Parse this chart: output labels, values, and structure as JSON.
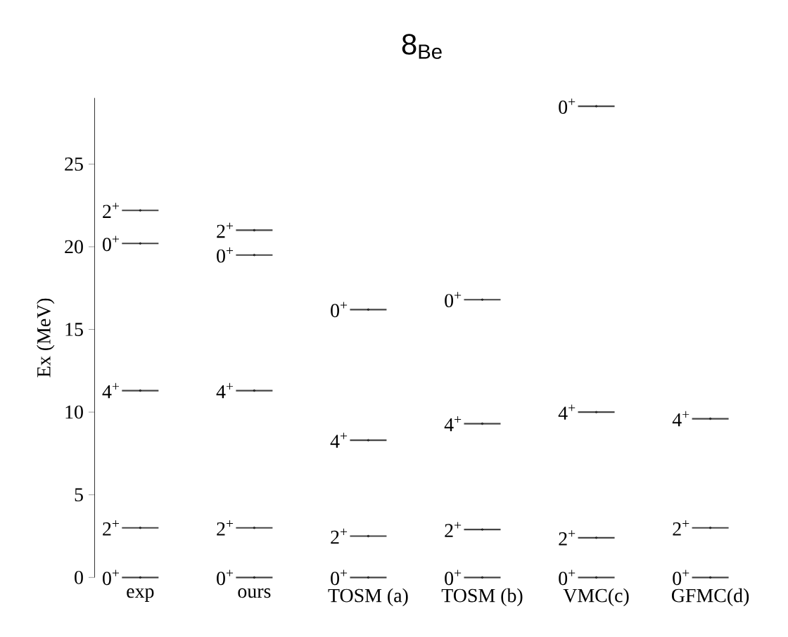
{
  "chart_data": {
    "type": "scatter",
    "title": "8$_{Be}$",
    "ylabel": "Ex  (MeV)",
    "categories": [
      "exp",
      "ours",
      "TOSM (a)",
      "TOSM (b)",
      "VMC(c)",
      "GFMC(d)"
    ],
    "ylim": [
      0,
      29
    ],
    "yticks": [
      0,
      5,
      10,
      15,
      20,
      25
    ],
    "grid": false,
    "series": [
      {
        "color": "#444444",
        "values": [
          0,
          0,
          0,
          0,
          0,
          0
        ]
      },
      {
        "color": "#444444",
        "values": [
          3.0,
          3.0,
          2.5,
          2.9,
          2.4,
          3.0
        ]
      },
      {
        "color": "#444444",
        "values": [
          11.3,
          11.3,
          8.3,
          9.3,
          10.0,
          9.6
        ]
      },
      {
        "color": "#444444",
        "values": [
          20.2,
          19.5,
          16.2,
          16.8,
          28.5,
          null
        ]
      },
      {
        "color": "#444444",
        "values": [
          22.2,
          21.0,
          null,
          null,
          null,
          null
        ]
      }
    ],
    "annotations": [
      {
        "text": "0$^{+}$",
        "x": "exp",
        "y": 0
      },
      {
        "text": "2$^{+}$",
        "x": "exp",
        "y": 3.0
      },
      {
        "text": "4$^{+}$",
        "x": "exp",
        "y": 11.3
      },
      {
        "text": "0$^{+}$",
        "x": "exp",
        "y": 20.2
      },
      {
        "text": "2$^{+}$",
        "x": "exp",
        "y": 22.2
      },
      {
        "text": "0$^{+}$",
        "x": "ours",
        "y": 0
      },
      {
        "text": "2$^{+}$",
        "x": "ours",
        "y": 3.0
      },
      {
        "text": "4$^{+}$",
        "x": "ours",
        "y": 11.3
      },
      {
        "text": "0$^{+}$",
        "x": "ours",
        "y": 19.5
      },
      {
        "text": "2$^{+}$",
        "x": "ours",
        "y": 21.0
      },
      {
        "text": "0$^{+}$",
        "x": "TOSM (a)",
        "y": 0
      },
      {
        "text": "2$^{+}$",
        "x": "TOSM (a)",
        "y": 2.5
      },
      {
        "text": "4$^{+}$",
        "x": "TOSM (a)",
        "y": 8.3
      },
      {
        "text": "0$^{+}$",
        "x": "TOSM (a)",
        "y": 16.2
      },
      {
        "text": "0$^{+}$",
        "x": "TOSM (b)",
        "y": 0
      },
      {
        "text": "2$^{+}$",
        "x": "TOSM (b)",
        "y": 2.9
      },
      {
        "text": "4$^{+}$",
        "x": "TOSM (b)",
        "y": 9.3
      },
      {
        "text": "0$^{+}$",
        "x": "TOSM (b)",
        "y": 16.8
      },
      {
        "text": "0$^{+}$",
        "x": "VMC(c)",
        "y": 0
      },
      {
        "text": "2$^{+}$",
        "x": "VMC(c)",
        "y": 2.4
      },
      {
        "text": "4$^{+}$",
        "x": "VMC(c)",
        "y": 10.0
      },
      {
        "text": "0$^{+}$",
        "x": "VMC(c)",
        "y": 28.5
      },
      {
        "text": "0$^{+}$",
        "x": "GFMC(d)",
        "y": 0
      },
      {
        "text": "2$^{+}$",
        "x": "GFMC(d)",
        "y": 3.0
      },
      {
        "text": "4$^{+}$",
        "x": "GFMC(d)",
        "y": 9.6
      }
    ]
  }
}
